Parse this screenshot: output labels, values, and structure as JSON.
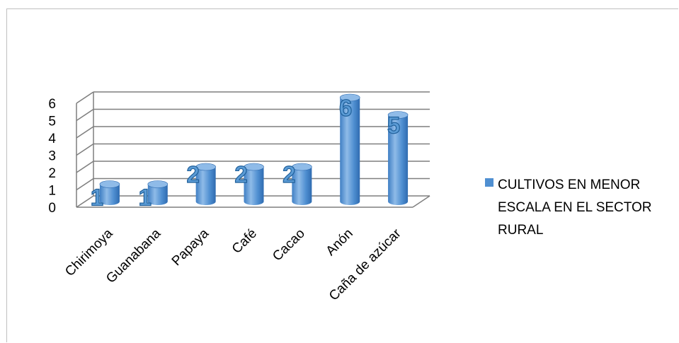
{
  "chart_data": {
    "type": "bar",
    "categories": [
      "Chirimoya",
      "Guanabana",
      "Papaya",
      "Café",
      "Cacao",
      "Anón",
      "Caña de azúcar"
    ],
    "series": [
      {
        "name": "CULTIVOS EN MENOR ESCALA EN EL SECTOR RURAL",
        "values": [
          1,
          1,
          2,
          2,
          2,
          6,
          5
        ]
      }
    ],
    "yticks": [
      0,
      1,
      2,
      3,
      4,
      5,
      6
    ],
    "ylim": [
      0,
      6
    ],
    "grid": true,
    "legend_position": "right",
    "data_labels": true,
    "bar_shape": "cylinder-3d"
  },
  "colors": {
    "bar_fill": "#4f8fd1",
    "bar_light": "#8fbbe8",
    "bar_dark": "#2f6bb0",
    "grid": "#7f7f7f"
  }
}
